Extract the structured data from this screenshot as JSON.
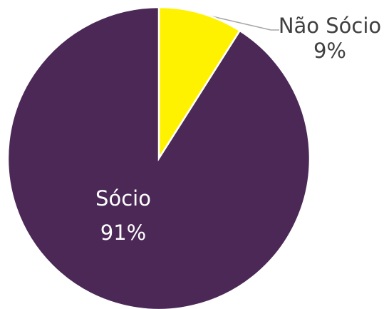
{
  "chart_data": {
    "type": "pie",
    "categories": [
      "Não Sócio",
      "Sócio"
    ],
    "values": [
      9,
      91
    ],
    "value_labels": [
      "9%",
      "91%"
    ],
    "colors": [
      "#fff200",
      "#4b2856"
    ]
  }
}
